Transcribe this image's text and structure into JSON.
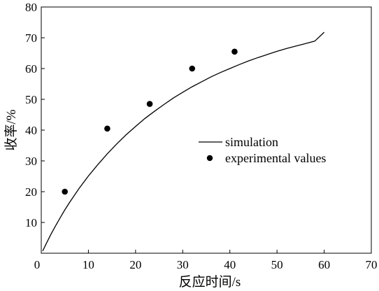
{
  "chart_data": {
    "type": "scatter",
    "title": "",
    "xlabel": "反应时间/s",
    "ylabel": "收率/%",
    "xlim": [
      0,
      70
    ],
    "ylim": [
      0,
      80
    ],
    "x_ticks": [
      0,
      10,
      20,
      30,
      40,
      50,
      60,
      70
    ],
    "y_ticks": [
      10,
      20,
      30,
      40,
      50,
      60,
      70,
      80
    ],
    "grid": false,
    "legend_position": "center-right",
    "series": [
      {
        "name": "simulation",
        "kind": "line",
        "x": [
          0.3,
          1,
          2,
          3,
          4,
          5,
          6,
          8,
          10,
          12,
          14,
          16,
          18,
          20,
          22,
          24,
          26,
          28,
          30,
          32,
          34,
          36,
          38,
          40,
          42,
          44,
          46,
          48,
          50,
          52,
          54,
          56,
          58,
          60
        ],
        "y": [
          0.7,
          2.9,
          6.0,
          8.8,
          11.5,
          14.1,
          16.5,
          21.0,
          25.1,
          28.8,
          32.3,
          35.5,
          38.5,
          41.2,
          43.8,
          46.1,
          48.3,
          50.4,
          52.3,
          54.1,
          55.7,
          57.3,
          58.7,
          60.0,
          61.3,
          62.5,
          63.6,
          64.6,
          65.6,
          66.5,
          67.3,
          68.1,
          68.9,
          71.8
        ]
      },
      {
        "name": "experimental values",
        "kind": "scatter",
        "x": [
          5,
          14,
          23,
          32,
          41
        ],
        "y": [
          20,
          40.5,
          48.5,
          60,
          65.5
        ]
      }
    ]
  }
}
